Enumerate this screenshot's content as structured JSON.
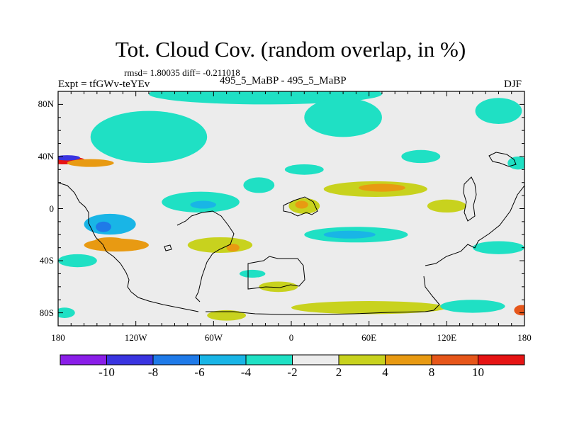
{
  "title": "Tot. Cloud Cov. (random overlap, in %)",
  "stats": "rmsd= 1.80035 diff= -0.211018",
  "left_label": "Expt = tfGWv-teYEv",
  "center_label": "495_5_MaBP - 495_5_MaBP",
  "right_label": "DJF",
  "chart_data": {
    "type": "heatmap",
    "title": "Tot. Cloud Cov. (random overlap, in %)",
    "x_ticks": [
      "180",
      "120W",
      "60W",
      "0",
      "60E",
      "120E",
      "180"
    ],
    "x_values": [
      -180,
      -120,
      -60,
      0,
      60,
      120,
      180
    ],
    "y_ticks": [
      "80N",
      "40N",
      "0",
      "40S",
      "80S"
    ],
    "y_values": [
      80,
      40,
      0,
      -40,
      -80
    ],
    "xlim": [
      -180,
      180
    ],
    "ylim": [
      -90,
      90
    ],
    "colorbar": {
      "labels": [
        "-10",
        "-8",
        "-6",
        "-4",
        "-2",
        "2",
        "4",
        "8",
        "10"
      ],
      "colors": [
        "#8a1ee8",
        "#3a34e0",
        "#1f7ae8",
        "#19b5e6",
        "#1fe0c4",
        "#ececec",
        "#c8d21e",
        "#e89a12",
        "#e6561a",
        "#e61414"
      ]
    },
    "fields": [
      {
        "lon": -175,
        "lat": 37,
        "rx": 16,
        "ry": 3,
        "value": 11
      },
      {
        "lon": -173,
        "lat": 39,
        "rx": 10,
        "ry": 2,
        "value": -9
      },
      {
        "lon": -155,
        "lat": 35,
        "rx": 18,
        "ry": 3,
        "value": 4
      },
      {
        "lon": -140,
        "lat": -12,
        "rx": 20,
        "ry": 8,
        "value": -5
      },
      {
        "lon": -145,
        "lat": -14,
        "rx": 6,
        "ry": 4,
        "value": -7
      },
      {
        "lon": -135,
        "lat": -28,
        "rx": 25,
        "ry": 5,
        "value": 4
      },
      {
        "lon": -140,
        "lat": -25,
        "rx": 12,
        "ry": 3,
        "value": 7
      },
      {
        "lon": -110,
        "lat": 55,
        "rx": 45,
        "ry": 20,
        "value": -3
      },
      {
        "lon": -20,
        "lat": 88,
        "rx": 90,
        "ry": 8,
        "value": -3
      },
      {
        "lon": -60,
        "lat": 90,
        "rx": 20,
        "ry": 5,
        "value": -4
      },
      {
        "lon": 40,
        "lat": 70,
        "rx": 30,
        "ry": 15,
        "value": -3
      },
      {
        "lon": 160,
        "lat": 75,
        "rx": 18,
        "ry": 10,
        "value": -3
      },
      {
        "lon": -70,
        "lat": 5,
        "rx": 30,
        "ry": 8,
        "value": -3
      },
      {
        "lon": -68,
        "lat": 3,
        "rx": 10,
        "ry": 3,
        "value": -5
      },
      {
        "lon": -25,
        "lat": 18,
        "rx": 12,
        "ry": 6,
        "value": -3
      },
      {
        "lon": 50,
        "lat": -20,
        "rx": 40,
        "ry": 6,
        "value": -3
      },
      {
        "lon": 45,
        "lat": -20,
        "rx": 20,
        "ry": 3,
        "value": -5
      },
      {
        "lon": 65,
        "lat": 15,
        "rx": 40,
        "ry": 6,
        "value": 3
      },
      {
        "lon": 70,
        "lat": 16,
        "rx": 18,
        "ry": 3,
        "value": 6
      },
      {
        "lon": 10,
        "lat": 2,
        "rx": 12,
        "ry": 6,
        "value": 3
      },
      {
        "lon": 8,
        "lat": 3,
        "rx": 5,
        "ry": 3,
        "value": 6
      },
      {
        "lon": -55,
        "lat": -28,
        "rx": 25,
        "ry": 6,
        "value": 3
      },
      {
        "lon": -45,
        "lat": -30,
        "rx": 5,
        "ry": 3,
        "value": 5
      },
      {
        "lon": -10,
        "lat": -60,
        "rx": 15,
        "ry": 4,
        "value": 3
      },
      {
        "lon": 60,
        "lat": -76,
        "rx": 60,
        "ry": 5,
        "value": 3
      },
      {
        "lon": -50,
        "lat": -82,
        "rx": 15,
        "ry": 4,
        "value": 3
      },
      {
        "lon": 140,
        "lat": -75,
        "rx": 25,
        "ry": 5,
        "value": -3
      },
      {
        "lon": 160,
        "lat": -30,
        "rx": 20,
        "ry": 5,
        "value": -3
      },
      {
        "lon": 120,
        "lat": 2,
        "rx": 15,
        "ry": 5,
        "value": 3
      },
      {
        "lon": -165,
        "lat": -40,
        "rx": 15,
        "ry": 5,
        "value": -3
      },
      {
        "lon": -175,
        "lat": -80,
        "rx": 8,
        "ry": 4,
        "value": -3
      },
      {
        "lon": 178,
        "lat": -78,
        "rx": 6,
        "ry": 4,
        "value": 8
      },
      {
        "lon": 10,
        "lat": 30,
        "rx": 15,
        "ry": 4,
        "value": -3
      },
      {
        "lon": -30,
        "lat": -50,
        "rx": 10,
        "ry": 3,
        "value": -3
      },
      {
        "lon": 100,
        "lat": 40,
        "rx": 15,
        "ry": 5,
        "value": -3
      },
      {
        "lon": 175,
        "lat": 35,
        "rx": 8,
        "ry": 5,
        "value": -3
      }
    ]
  }
}
